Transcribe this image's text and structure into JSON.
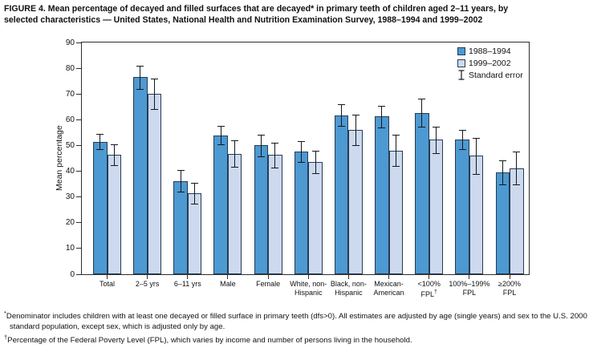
{
  "header": {
    "lines": [
      "FIGURE 4. Mean percentage of decayed and filled surfaces that are decayed* in primary teeth of children aged 2–11 years, by",
      "selected characteristics — United States, National Health and Nutrition Examination Survey, 1988–1994 and 1999–2002"
    ]
  },
  "legend": {
    "series1_label": "1988–1994",
    "series2_label": "1999–2002",
    "se_label": "Standard error"
  },
  "footnotes": {
    "items": [
      {
        "marker": "*",
        "text": "Denominator includes children with at least one decayed or filled surface in primary teeth (dfs>0). All estimates are adjusted by age (single years) and sex to the U.S. 2000 standard population, except sex, which is adjusted only by age."
      },
      {
        "marker": "†",
        "text": "Percentage of the Federal Poverty Level (FPL), which varies by income and number of persons living in the household."
      }
    ]
  },
  "chart_data": {
    "type": "bar",
    "title": "Mean percentage of decayed and filled surfaces that are decayed in primary teeth of children aged 2–11 years, by selected characteristics",
    "xlabel": "",
    "ylabel": "Mean percentage",
    "ylim": [
      0,
      90
    ],
    "yticks": [
      0,
      10,
      20,
      30,
      40,
      50,
      60,
      70,
      80,
      90
    ],
    "grid": false,
    "legend_position": "top-right-inside",
    "error_bars": "standard error",
    "categories": [
      "Total",
      "2–5 yrs",
      "6–11 yrs",
      "Male",
      "Female",
      "White, non-Hispanic",
      "Black, non-Hispanic",
      "Mexican-American",
      "<100% FPL†",
      "100%–199% FPL",
      "≥200% FPL"
    ],
    "category_label_lines": [
      [
        "Total"
      ],
      [
        "2–5 yrs"
      ],
      [
        "6–11 yrs"
      ],
      [
        "Male"
      ],
      [
        "Female"
      ],
      [
        "White, non-",
        "Hispanic"
      ],
      [
        "Black, non-",
        "Hispanic"
      ],
      [
        "Mexican-",
        "American"
      ],
      [
        "<100%",
        "FPL†"
      ],
      [
        "100%–199%",
        "FPL"
      ],
      [
        "≥200%",
        "FPL"
      ]
    ],
    "series": [
      {
        "name": "1988–1994",
        "color": "#4d99d2",
        "border_color": "#253c52",
        "values": [
          51.5,
          76.5,
          36.2,
          54.0,
          50.0,
          47.7,
          61.8,
          61.2,
          62.7,
          52.3,
          39.5
        ],
        "standard_errors": [
          3.0,
          4.5,
          4.2,
          3.7,
          4.3,
          4.1,
          4.3,
          4.3,
          5.5,
          3.6,
          4.7
        ]
      },
      {
        "name": "1999–2002",
        "color": "#cdd9ee",
        "border_color": "#253c52",
        "values": [
          46.3,
          70.0,
          31.5,
          46.8,
          46.3,
          43.6,
          56.0,
          48.0,
          52.2,
          46.0,
          41.2
        ],
        "standard_errors": [
          4.0,
          6.0,
          4.1,
          5.2,
          4.9,
          4.5,
          5.9,
          6.1,
          5.1,
          7.0,
          6.3
        ]
      }
    ]
  }
}
